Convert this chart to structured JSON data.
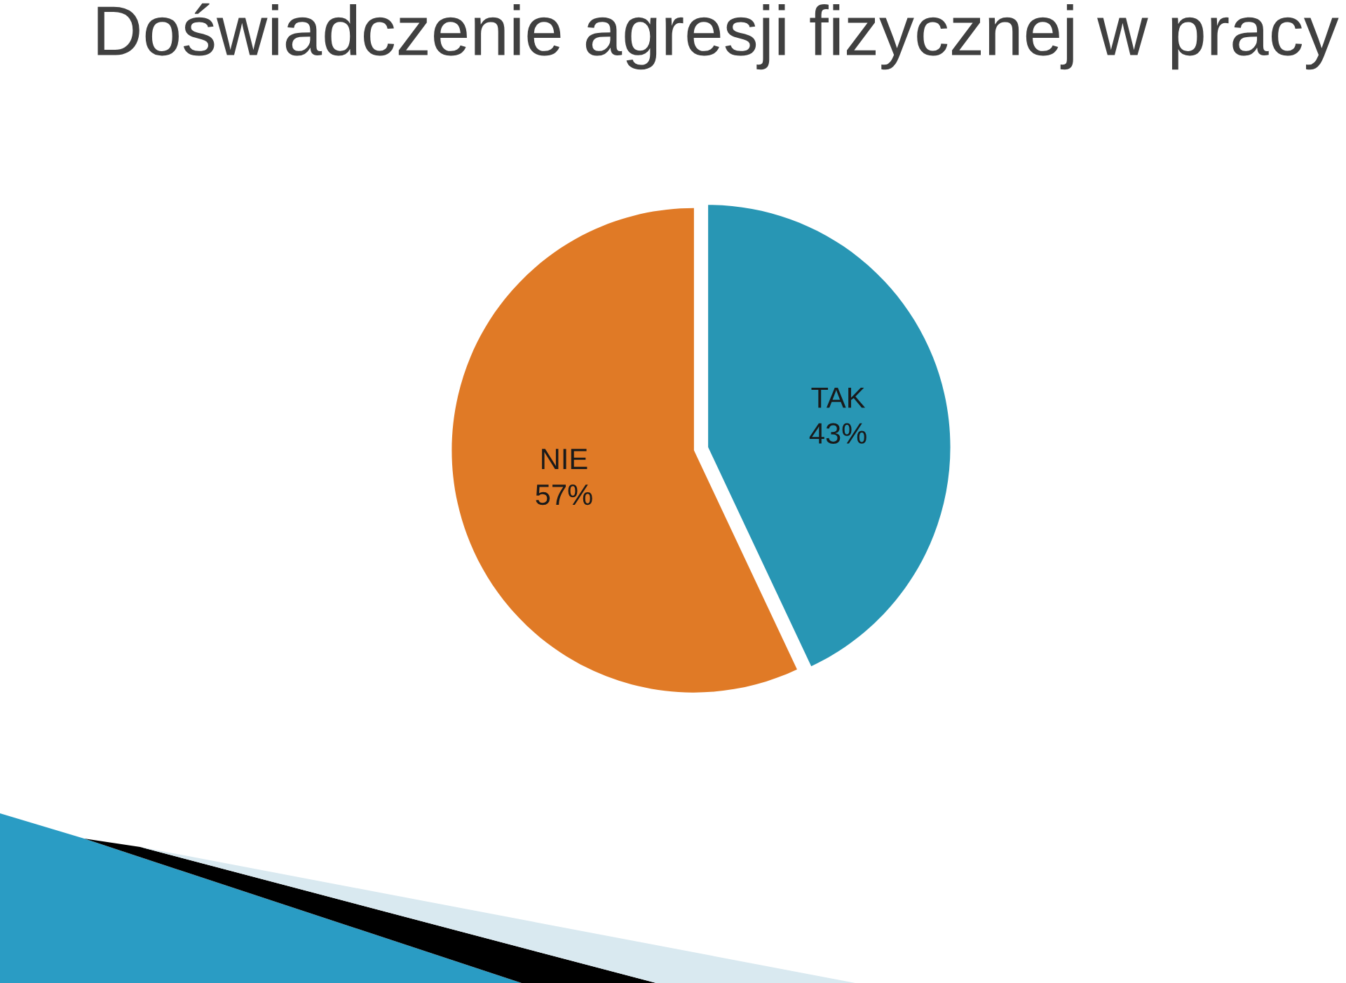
{
  "chart_data": {
    "type": "pie",
    "title": "Doświadczenie agresji fizycznej w pracy",
    "categories": [
      "TAK",
      "NIE"
    ],
    "values": [
      43,
      57
    ],
    "colors": [
      "#2896b4",
      "#e07a26"
    ],
    "value_labels": [
      "43%",
      "57%"
    ]
  }
}
